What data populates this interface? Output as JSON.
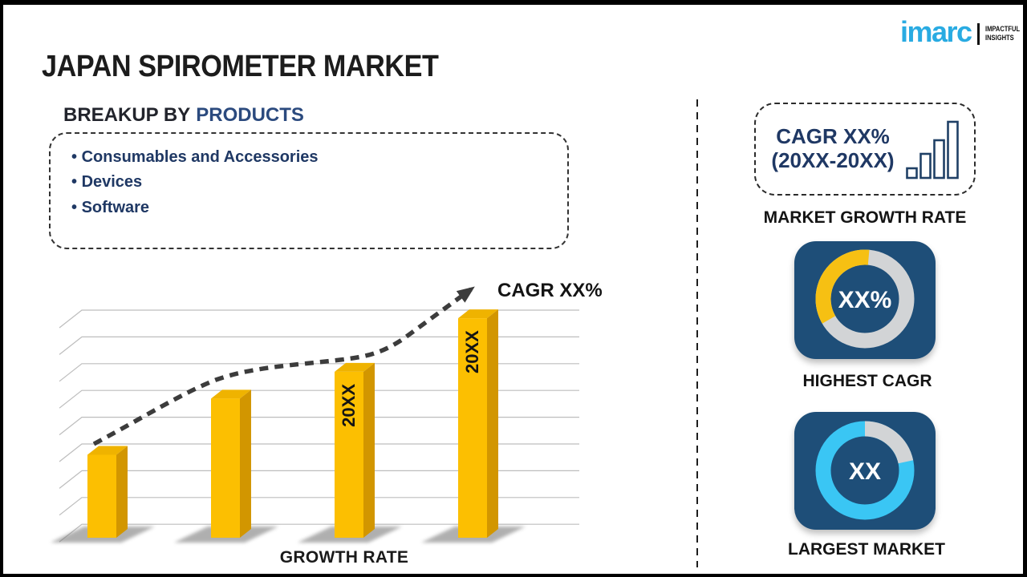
{
  "page": {
    "title": "JAPAN SPIROMETER MARKET"
  },
  "logo": {
    "brand": "imarc",
    "tagline_line1": "IMPACTFUL",
    "tagline_line2": "INSIGHTS",
    "brand_color": "#29ABE2"
  },
  "breakup": {
    "heading_prefix": "BREAKUP BY",
    "heading_accent": "PRODUCTS",
    "items": [
      "Consumables and Accessories",
      "Devices",
      "Software"
    ]
  },
  "chart_data": {
    "type": "bar",
    "categories": [
      "",
      "",
      "20XX",
      "20XX"
    ],
    "values": [
      3.1,
      5.2,
      6.2,
      8.2
    ],
    "values_unit": "relative height in gridline divisions (y axis unlabeled)",
    "bar_labels": [
      "",
      "",
      "20XX",
      "20XX"
    ],
    "trend_label": "CAGR XX%",
    "xlabel": "GROWTH RATE",
    "ylabel": "",
    "ylim": [
      0,
      10
    ],
    "grid": true,
    "legend": false,
    "colors": {
      "bar_front": "#FCBF01",
      "bar_top": "#EFB300",
      "bar_side": "#D29600",
      "trend": "#3C3C3C",
      "grid": "#BDBDBD"
    }
  },
  "right_panel": {
    "cagr_box": {
      "line1": "CAGR XX%",
      "line2": "(20XX-20XX)"
    },
    "market_growth_rate_label": "MARKET GROWTH RATE",
    "highest_cagr": {
      "value": "XX%",
      "label": "HIGHEST CAGR",
      "arc_deg": 125,
      "arc_color": "#F6C013",
      "ring_color": "#D2D4D6"
    },
    "largest_market": {
      "value": "XX",
      "label": "LARGEST MARKET",
      "arc_deg": 78,
      "arc_color": "#D2D4D6",
      "ring_color": "#3AC6F4"
    },
    "tile_color": "#1E4E78"
  }
}
